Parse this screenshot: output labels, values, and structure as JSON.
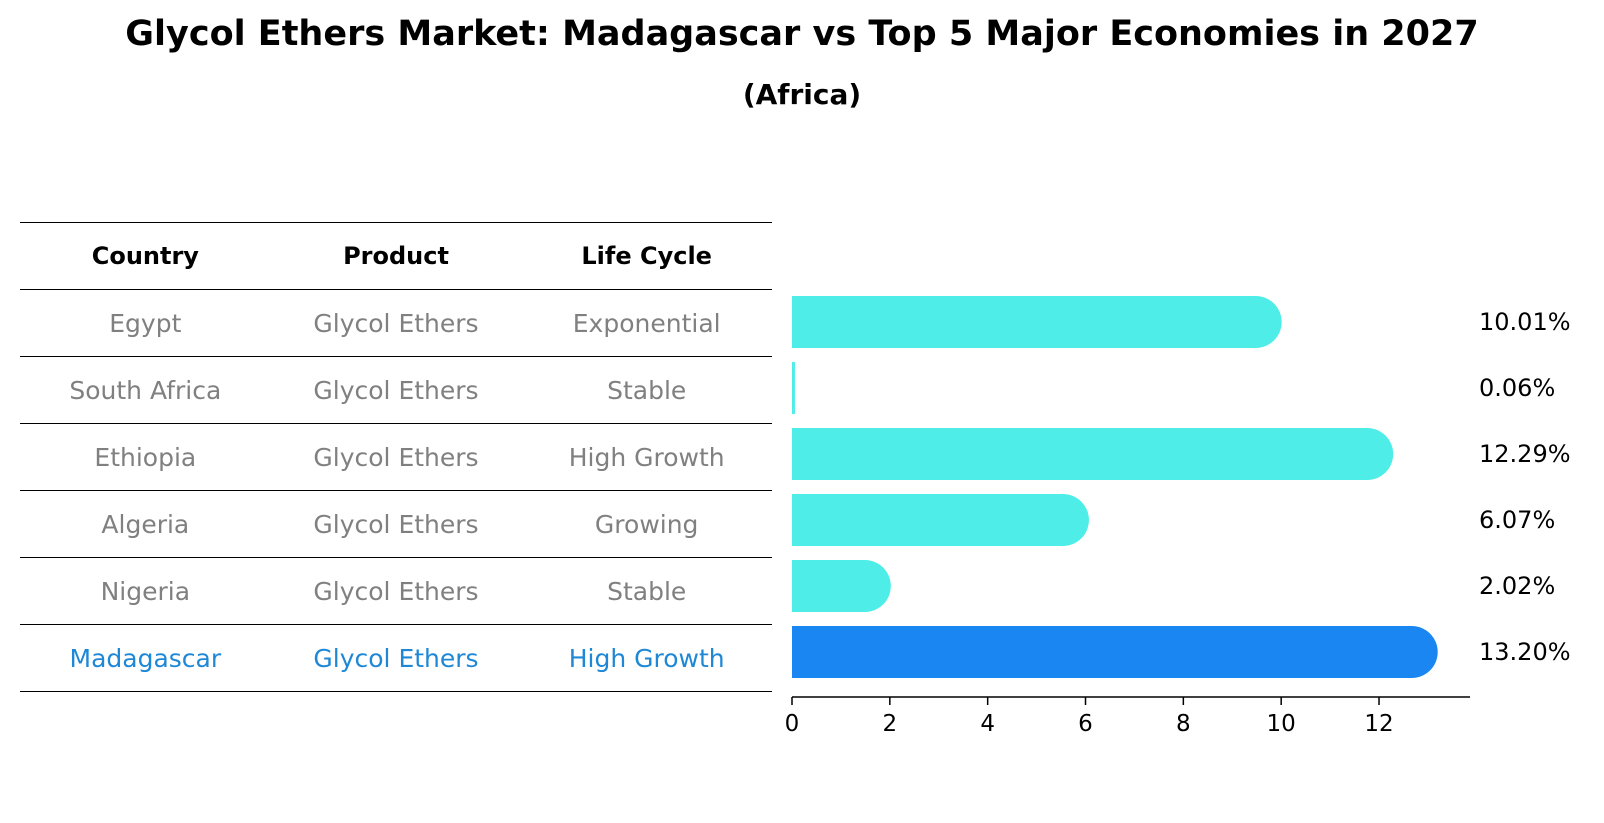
{
  "title": "Glycol Ethers Market: Madagascar vs Top 5 Major Economies in 2027",
  "subtitle": "(Africa)",
  "table": {
    "headers": [
      "Country",
      "Product",
      "Life Cycle"
    ],
    "rows": [
      [
        "Egypt",
        "Glycol Ethers",
        "Exponential"
      ],
      [
        "South Africa",
        "Glycol Ethers",
        "Stable"
      ],
      [
        "Ethiopia",
        "Glycol Ethers",
        "High Growth"
      ],
      [
        "Algeria",
        "Glycol Ethers",
        "Growing"
      ],
      [
        "Nigeria",
        "Glycol Ethers",
        "Stable"
      ],
      [
        "Madagascar",
        "Glycol Ethers",
        "High Growth"
      ]
    ],
    "highlight_index": 5
  },
  "colors": {
    "bar": "#4eede8",
    "highlight_bar": "#1a86f2",
    "highlight_text": "#1e88d6",
    "muted_text": "#808080"
  },
  "chart_data": {
    "type": "bar",
    "orientation": "horizontal",
    "categories": [
      "Egypt",
      "South Africa",
      "Ethiopia",
      "Algeria",
      "Nigeria",
      "Madagascar"
    ],
    "values": [
      10.01,
      0.06,
      12.29,
      6.07,
      2.02,
      13.2
    ],
    "value_labels": [
      "10.01%",
      "0.06%",
      "12.29%",
      "6.07%",
      "2.02%",
      "13.20%"
    ],
    "xlim": [
      0,
      13.86
    ],
    "xticks": [
      0,
      2,
      4,
      6,
      8,
      10,
      12
    ],
    "highlight_index": 5
  }
}
